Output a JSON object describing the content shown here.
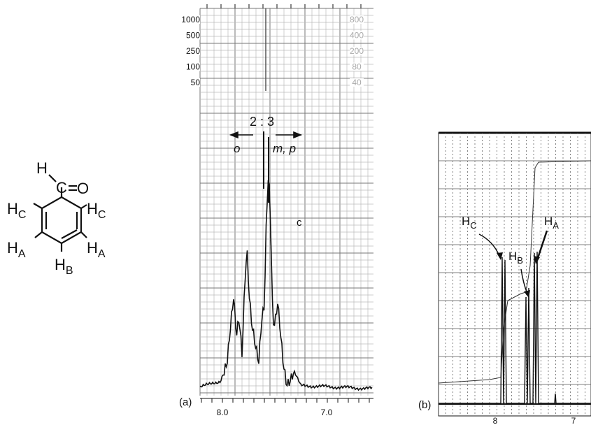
{
  "molecule": {
    "atoms": [
      {
        "label": "H"
      },
      {
        "label": "C"
      },
      {
        "label": "O"
      },
      {
        "label": "H",
        "sub": "C"
      },
      {
        "label": "H",
        "sub": "C"
      },
      {
        "label": "H",
        "sub": "A"
      },
      {
        "label": "H",
        "sub": "A"
      },
      {
        "label": "H",
        "sub": "B"
      }
    ]
  },
  "panel_a": {
    "label": "(a)",
    "left_scale": [
      "1000",
      "500",
      "250",
      "100",
      "50"
    ],
    "right_scale": [
      "800",
      "400",
      "200",
      "80",
      "40"
    ],
    "ratio": "2 : 3",
    "ortho": "o",
    "meta_para": "m, p",
    "peak_label": "c",
    "x_tick_labels": [
      "8.0",
      "7.0"
    ]
  },
  "panel_b": {
    "label": "(b)",
    "annotations": [
      {
        "label": "H",
        "sub": "C"
      },
      {
        "label": "H",
        "sub": "B"
      },
      {
        "label": "H",
        "sub": "A"
      }
    ],
    "x_tick_labels": [
      "8",
      "7"
    ]
  }
}
